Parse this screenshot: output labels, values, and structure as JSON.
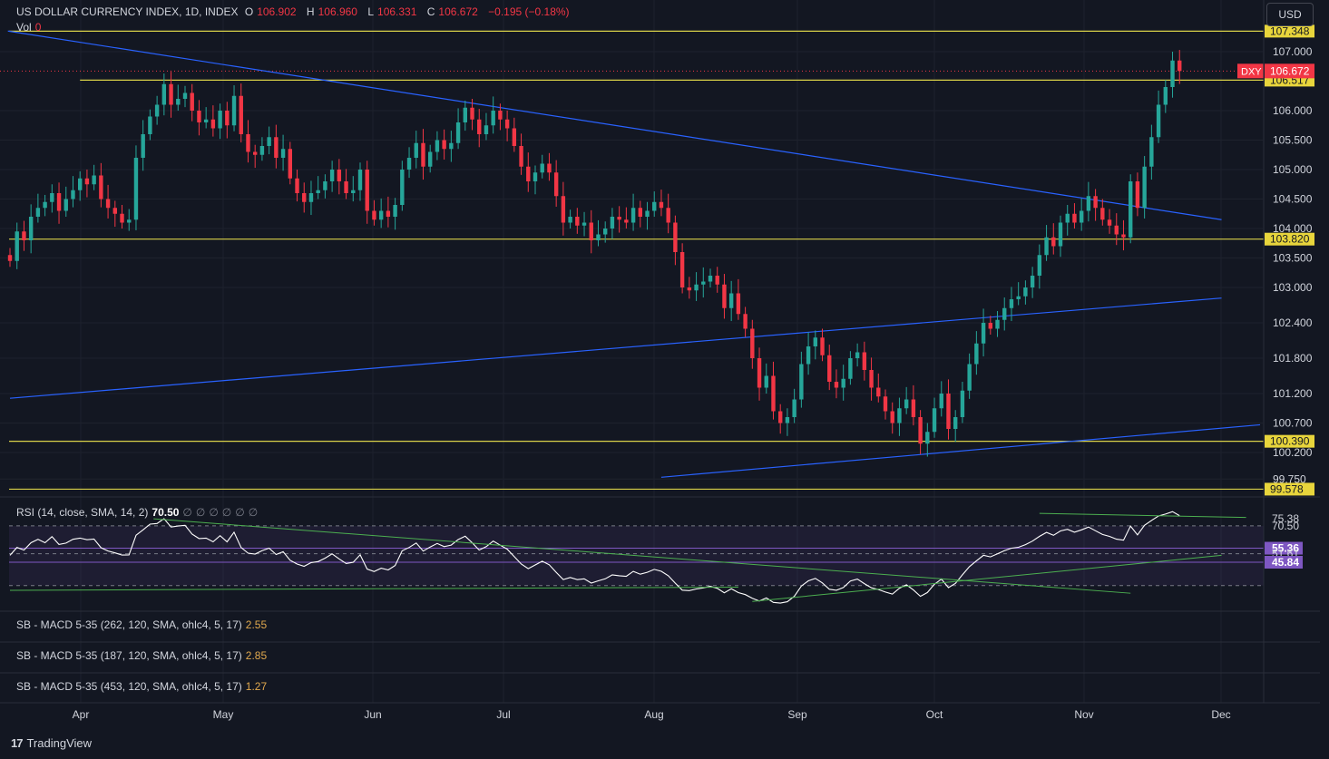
{
  "header": {
    "title": "US DOLLAR CURRENCY INDEX, 1D, INDEX",
    "open_label": "O",
    "open": "106.902",
    "high_label": "H",
    "high": "106.960",
    "low_label": "L",
    "low": "106.331",
    "close_label": "C",
    "close": "106.672",
    "change": "−0.195 (−0.18%)"
  },
  "volume": {
    "label": "Vol",
    "value": "0"
  },
  "currency_button": "USD",
  "brand": {
    "logo": "17",
    "name": "TradingView"
  },
  "colors": {
    "up": "#26a69a",
    "down": "#f23645",
    "yellow": "#d8d048",
    "trend": "#2962ff",
    "rsi_line": "#ffffff",
    "rsi_band": "#7e57c2",
    "green_trend": "#4caf50"
  },
  "chart_data": [
    {
      "type": "candlestick",
      "symbol": "DXY",
      "x_ticks": [
        "Apr",
        "May",
        "Jun",
        "Jul",
        "Aug",
        "Sep",
        "Oct",
        "Nov",
        "Dec"
      ],
      "y_ticks": [
        "107.000",
        "106.000",
        "105.500",
        "105.000",
        "104.500",
        "104.000",
        "103.500",
        "103.000",
        "102.400",
        "101.800",
        "101.200",
        "100.700",
        "100.200",
        "99.750"
      ],
      "ylim": [
        99.7,
        107.45
      ],
      "last_price": {
        "label": "DXY",
        "value": "106.672"
      },
      "horizontal_levels": [
        "107.348",
        "106.517",
        "103.820",
        "100.390",
        "99.578"
      ],
      "closes": [
        103.45,
        103.95,
        103.8,
        104.2,
        104.35,
        104.45,
        104.6,
        104.3,
        104.5,
        104.65,
        104.85,
        104.75,
        104.9,
        104.5,
        104.35,
        104.25,
        104.1,
        104.15,
        105.2,
        105.6,
        105.9,
        106.1,
        106.45,
        106.1,
        106.2,
        106.3,
        106.0,
        105.8,
        105.85,
        105.7,
        106.0,
        105.75,
        106.25,
        105.6,
        105.3,
        105.25,
        105.4,
        105.55,
        105.2,
        105.35,
        104.85,
        104.6,
        104.45,
        104.6,
        104.65,
        104.8,
        105.0,
        104.8,
        104.6,
        104.65,
        105.0,
        104.3,
        104.15,
        104.3,
        104.2,
        104.4,
        105.0,
        105.2,
        105.45,
        105.05,
        105.3,
        105.5,
        105.35,
        105.45,
        105.8,
        106.05,
        105.85,
        105.6,
        105.75,
        106.0,
        105.85,
        105.7,
        105.4,
        105.05,
        104.8,
        104.95,
        105.1,
        104.95,
        104.55,
        104.1,
        104.2,
        104.05,
        104.1,
        103.8,
        103.9,
        104.0,
        104.2,
        104.15,
        104.1,
        104.35,
        104.2,
        104.3,
        104.45,
        104.35,
        104.1,
        103.6,
        103.0,
        102.95,
        103.05,
        103.1,
        103.2,
        103.05,
        102.65,
        102.9,
        102.55,
        102.3,
        101.8,
        101.3,
        101.5,
        100.9,
        100.7,
        100.8,
        101.1,
        101.7,
        102.0,
        102.15,
        101.85,
        101.4,
        101.3,
        101.45,
        101.8,
        101.9,
        101.6,
        101.3,
        101.15,
        100.9,
        100.7,
        100.95,
        101.1,
        100.8,
        100.35,
        100.55,
        100.95,
        101.2,
        100.6,
        100.8,
        101.25,
        101.7,
        102.05,
        102.4,
        102.3,
        102.45,
        102.65,
        102.8,
        102.85,
        103.0,
        103.2,
        103.55,
        103.85,
        103.7,
        104.1,
        104.25,
        104.1,
        104.3,
        104.55,
        104.35,
        104.15,
        104.05,
        103.9,
        103.85,
        104.8,
        104.35,
        105.05,
        105.55,
        106.1,
        106.4,
        106.85,
        106.672
      ],
      "trendlines": "blue descending resistance from Mar to Nov; blue ascending support lines"
    },
    {
      "type": "line",
      "name": "RSI (14, close, SMA, 14, 2)",
      "legend_value": "70.50",
      "legend_extras": [
        "∅",
        "∅",
        "∅",
        "∅",
        "∅",
        "∅"
      ],
      "axis_labels": [
        "75.38",
        "70.50",
        "55.36",
        "51.61",
        "45.84"
      ],
      "ylim": [
        20,
        80
      ],
      "values": [
        50.5,
        55.9,
        54.1,
        59.1,
        61.4,
        59.1,
        63.2,
        57.9,
        58.8,
        61.4,
        62.2,
        61.1,
        61.6,
        55.7,
        53.5,
        52.2,
        50.7,
        50.8,
        64.2,
        67.8,
        71.7,
        72.1,
        75.4,
        69.7,
        70.4,
        70.9,
        64.9,
        61.9,
        62.2,
        59.7,
        63.9,
        59.7,
        66.2,
        55.8,
        52.0,
        51.4,
        53.7,
        55.4,
        51.1,
        53.0,
        47.2,
        44.6,
        43.1,
        45.6,
        46.3,
        48.6,
        51.5,
        48.1,
        45.0,
        45.8,
        50.9,
        41.2,
        39.5,
        41.8,
        40.6,
        43.6,
        53.6,
        55.9,
        58.9,
        53.4,
        56.2,
        58.6,
        56.4,
        57.5,
        61.2,
        63.5,
        59.1,
        54.1,
        56.4,
        60.2,
        57.4,
        54.7,
        49.7,
        44.6,
        41.5,
        44.0,
        46.5,
        44.1,
        38.9,
        34.1,
        35.5,
        34.0,
        34.6,
        31.7,
        33.2,
        34.6,
        37.3,
        36.7,
        36.3,
        39.6,
        37.7,
        39.0,
        41.0,
        39.7,
        36.7,
        31.6,
        26.9,
        26.6,
        27.7,
        28.4,
        29.5,
        28.1,
        25.1,
        27.8,
        25.2,
        23.9,
        21.4,
        19.5,
        21.6,
        18.6,
        18.1,
        19.0,
        22.7,
        29.7,
        33.2,
        34.9,
        31.8,
        27.5,
        26.8,
        28.7,
        33.1,
        34.4,
        31.3,
        28.5,
        27.3,
        25.6,
        24.2,
        28.2,
        30.5,
        27.0,
        22.7,
        25.3,
        30.9,
        34.4,
        28.6,
        31.5,
        37.3,
        42.8,
        46.8,
        50.5,
        49.5,
        51.5,
        53.7,
        55.4,
        56.0,
        57.8,
        60.2,
        63.4,
        66.1,
        64.1,
        67.1,
        68.2,
        66.2,
        67.8,
        69.7,
        67.2,
        64.7,
        63.4,
        61.5,
        60.8,
        70.4,
        64.4,
        70.9,
        74.2,
        77.2,
        78.5,
        80.2,
        77.5
      ]
    },
    {
      "type": "line",
      "name": "SB - MACD 5-35 (262, 120, SMA, ohlc4, 5, 17)",
      "legend_value": "2.55"
    },
    {
      "type": "line",
      "name": "SB - MACD 5-35 (187, 120, SMA, ohlc4, 5, 17)",
      "legend_value": "2.85"
    },
    {
      "type": "line",
      "name": "SB - MACD 5-35 (453, 120, SMA, ohlc4, 5, 17)",
      "legend_value": "1.27"
    }
  ]
}
